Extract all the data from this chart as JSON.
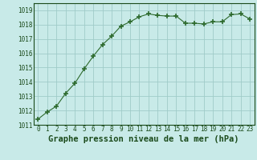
{
  "x": [
    0,
    1,
    2,
    3,
    4,
    5,
    6,
    7,
    8,
    9,
    10,
    11,
    12,
    13,
    14,
    15,
    16,
    17,
    18,
    19,
    20,
    21,
    22,
    23
  ],
  "y": [
    1011.4,
    1011.9,
    1012.3,
    1013.2,
    1013.9,
    1014.9,
    1015.8,
    1016.6,
    1017.2,
    1017.9,
    1018.2,
    1018.55,
    1018.75,
    1018.65,
    1018.6,
    1018.6,
    1018.1,
    1018.1,
    1018.05,
    1018.2,
    1018.2,
    1018.7,
    1018.75,
    1018.4
  ],
  "line_color": "#2d6a2d",
  "marker": "+",
  "marker_size": 4,
  "marker_lw": 1.2,
  "bg_color": "#c8eae8",
  "grid_color": "#a0ccc8",
  "xlabel": "Graphe pression niveau de la mer (hPa)",
  "xlabel_fontsize": 7.5,
  "xlabel_color": "#1a4a1a",
  "xlabel_fontweight": "bold",
  "ylim": [
    1011,
    1019.5
  ],
  "yticks": [
    1011,
    1012,
    1013,
    1014,
    1015,
    1016,
    1017,
    1018,
    1019
  ],
  "xtick_fontsize": 5.5,
  "ytick_fontsize": 5.5,
  "tick_color": "#1a4a1a",
  "line_width": 0.8
}
